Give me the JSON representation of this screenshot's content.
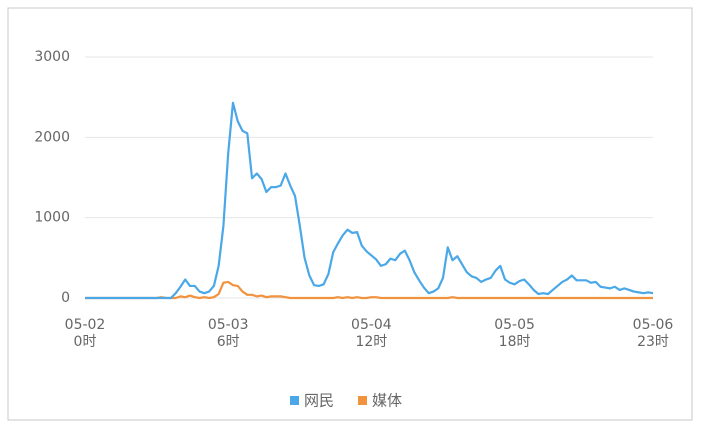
{
  "chart_data": {
    "type": "line",
    "categories": [
      [
        "05-02",
        "0时"
      ],
      null,
      null,
      null,
      null,
      null,
      null,
      null,
      null,
      null,
      null,
      null,
      null,
      null,
      null,
      null,
      null,
      null,
      null,
      null,
      null,
      null,
      null,
      null,
      null,
      null,
      null,
      null,
      null,
      null,
      [
        "05-03",
        "6时"
      ],
      null,
      null,
      null,
      null,
      null,
      null,
      null,
      null,
      null,
      null,
      null,
      null,
      null,
      null,
      null,
      null,
      null,
      null,
      null,
      null,
      null,
      null,
      null,
      null,
      null,
      null,
      null,
      null,
      null,
      [
        "05-04",
        "12时"
      ],
      null,
      null,
      null,
      null,
      null,
      null,
      null,
      null,
      null,
      null,
      null,
      null,
      null,
      null,
      null,
      null,
      null,
      null,
      null,
      null,
      null,
      null,
      null,
      null,
      null,
      null,
      null,
      null,
      null,
      [
        "05-05",
        "18时"
      ],
      null,
      null,
      null,
      null,
      null,
      null,
      null,
      null,
      null,
      null,
      null,
      null,
      null,
      null,
      null,
      null,
      null,
      null,
      null,
      null,
      null,
      null,
      null,
      null,
      null,
      null,
      null,
      null,
      [
        "05-06",
        "23时"
      ]
    ],
    "series": [
      {
        "name": "网民",
        "color": "#4aa7e8",
        "values": [
          0,
          0,
          0,
          0,
          0,
          0,
          0,
          0,
          0,
          0,
          0,
          0,
          0,
          0,
          0,
          0,
          0,
          0,
          0,
          60,
          140,
          230,
          150,
          150,
          80,
          60,
          80,
          150,
          400,
          900,
          1800,
          2430,
          2200,
          2080,
          2050,
          1490,
          1550,
          1480,
          1320,
          1380,
          1380,
          1400,
          1550,
          1400,
          1270,
          900,
          500,
          280,
          160,
          150,
          170,
          300,
          570,
          680,
          780,
          850,
          810,
          820,
          650,
          580,
          530,
          480,
          400,
          420,
          490,
          470,
          550,
          590,
          470,
          320,
          220,
          130,
          60,
          80,
          120,
          250,
          630,
          470,
          520,
          420,
          320,
          270,
          250,
          200,
          230,
          250,
          340,
          400,
          230,
          190,
          170,
          210,
          230,
          170,
          100,
          50,
          60,
          50,
          100,
          150,
          200,
          230,
          280,
          220,
          220,
          220,
          190,
          200,
          140,
          130,
          120,
          140,
          100,
          120,
          100,
          80,
          70,
          60,
          70,
          60
        ]
      },
      {
        "name": "媒体",
        "color": "#f0923e",
        "values": [
          0,
          0,
          0,
          0,
          0,
          0,
          0,
          0,
          0,
          0,
          0,
          0,
          0,
          0,
          0,
          0,
          10,
          0,
          0,
          0,
          20,
          10,
          30,
          10,
          0,
          10,
          0,
          10,
          50,
          190,
          200,
          160,
          150,
          80,
          40,
          40,
          20,
          30,
          10,
          20,
          20,
          20,
          10,
          0,
          0,
          0,
          0,
          0,
          0,
          0,
          0,
          0,
          0,
          10,
          0,
          10,
          0,
          10,
          0,
          0,
          10,
          10,
          0,
          0,
          0,
          0,
          0,
          0,
          0,
          0,
          0,
          0,
          0,
          0,
          0,
          0,
          0,
          10,
          0,
          0,
          0,
          0,
          0,
          0,
          0,
          0,
          0,
          0,
          0,
          0,
          0,
          0,
          0,
          0,
          0,
          0,
          0,
          0,
          0,
          0,
          0,
          0,
          0,
          0,
          0,
          0,
          0,
          0,
          0,
          0,
          0,
          0,
          0,
          0,
          0,
          0,
          0,
          0,
          0,
          0
        ]
      }
    ],
    "ylim": [
      0,
      3000
    ],
    "yticks": [
      0,
      1000,
      2000,
      3000
    ],
    "grid": true
  }
}
